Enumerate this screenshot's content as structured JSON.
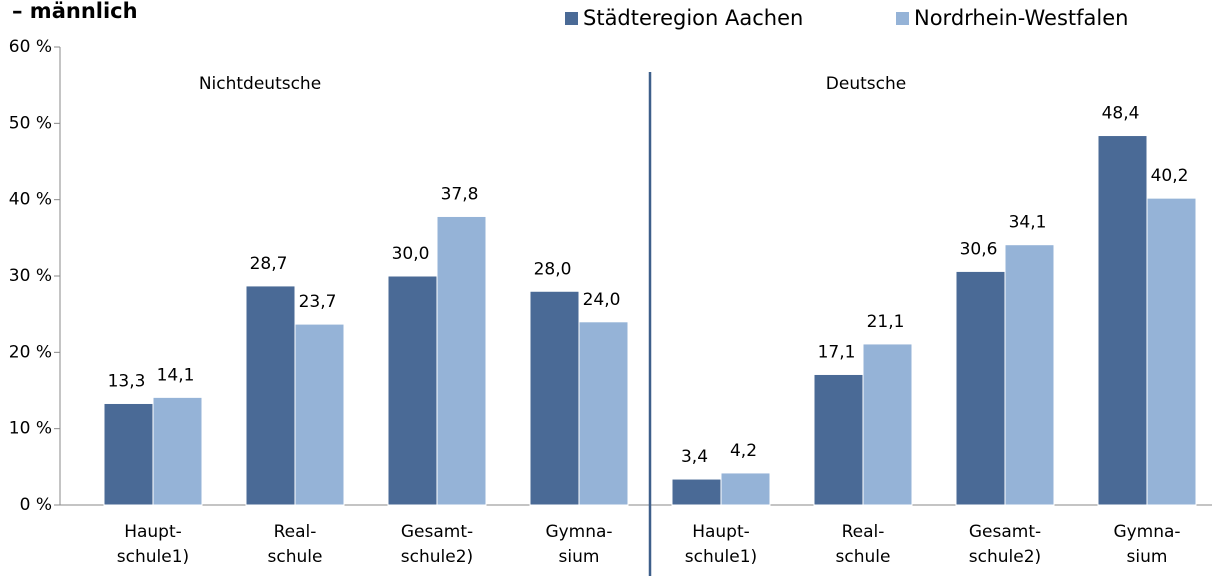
{
  "chart_data": {
    "type": "bar",
    "title": "– männlich",
    "categories": [
      "Haupt-\nschule1)",
      "Real-\nschule",
      "Gesamt-\nschule2)",
      "Gymna-\nsium",
      "Haupt-\nschule1)",
      "Real-\nschule",
      "Gesamt-\nschule2)",
      "Gymna-\nsium"
    ],
    "series": [
      {
        "name": "Städteregion Aachen",
        "color": "#4a6a96",
        "values": [
          13.3,
          28.7,
          30.0,
          28.0,
          3.4,
          17.1,
          30.6,
          48.4
        ],
        "value_labels": [
          "13,3",
          "28,7",
          "30,0",
          "28,0",
          "3,4",
          "17,1",
          "30,6",
          "48,4"
        ]
      },
      {
        "name": "Nordrhein-Westfalen",
        "color": "#95b3d7",
        "values": [
          14.1,
          23.7,
          37.8,
          24.0,
          4.2,
          21.1,
          34.1,
          40.2
        ],
        "value_labels": [
          "14,1",
          "23,7",
          "37,8",
          "24,0",
          "4,2",
          "21,1",
          "34,1",
          "40,2"
        ]
      }
    ],
    "annotations": [
      {
        "text": "Nichtdeutsche"
      },
      {
        "text": "Deutsche"
      }
    ],
    "ylim": [
      0,
      60
    ],
    "yticks": [
      {
        "value": 0,
        "label": "0 %"
      },
      {
        "value": 10,
        "label": "10 %"
      },
      {
        "value": 20,
        "label": "20 %"
      },
      {
        "value": 30,
        "label": "30 %"
      },
      {
        "value": 40,
        "label": "40 %"
      },
      {
        "value": 50,
        "label": "50 %"
      },
      {
        "value": 60,
        "label": "60 %"
      }
    ],
    "grid": false,
    "legend": "top-right"
  }
}
